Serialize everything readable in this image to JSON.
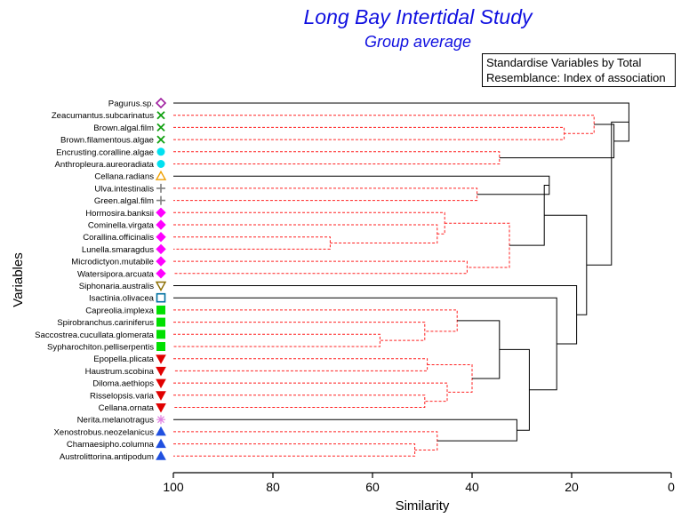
{
  "title": "Long Bay Intertidal Study",
  "subtitle": "Group average",
  "legend_lines": [
    "Standardise Variables by Total",
    "Resemblance: Index of association"
  ],
  "chart_data": {
    "type": "dendrogram",
    "title": "Long Bay Intertidal Study",
    "subtitle": "Group average",
    "xlabel": "Similarity",
    "ylabel": "Variables",
    "xlim": [
      100,
      0
    ],
    "xticks": [
      100,
      80,
      60,
      40,
      20,
      0
    ],
    "colors": {
      "solid_link": "#000000",
      "dashed_link": "#ff2020",
      "purple": "#a020a0",
      "green_x": "#10a010",
      "cyan": "#00e0f0",
      "orange": "#f0a000",
      "gray": "#808080",
      "magenta": "#ff00ff",
      "olive": "#8b6d00",
      "teal": "#0070a0",
      "green_sq": "#00e000",
      "red": "#e00000",
      "pink_star": "#e080e0",
      "blue": "#2050e0"
    },
    "leaves": [
      {
        "label": "Pagurus.sp.",
        "marker": "diamond-open",
        "color": "purple"
      },
      {
        "label": "Zeacumantus.subcarinatus",
        "marker": "x",
        "color": "green_x"
      },
      {
        "label": "Brown.algal.film",
        "marker": "x",
        "color": "green_x"
      },
      {
        "label": "Brown.filamentous.algae",
        "marker": "x",
        "color": "green_x"
      },
      {
        "label": "Encrusting.coralline.algae",
        "marker": "circle",
        "color": "cyan"
      },
      {
        "label": "Anthropleura.aureoradiata",
        "marker": "circle",
        "color": "cyan"
      },
      {
        "label": "Cellana.radians",
        "marker": "triangle-up-open",
        "color": "orange"
      },
      {
        "label": "Ulva.intestinalis",
        "marker": "plus",
        "color": "gray"
      },
      {
        "label": "Green.algal.film",
        "marker": "plus",
        "color": "gray"
      },
      {
        "label": "Hormosira.banksii",
        "marker": "diamond",
        "color": "magenta"
      },
      {
        "label": "Cominella.virgata",
        "marker": "diamond",
        "color": "magenta"
      },
      {
        "label": "Corallina.officinalis",
        "marker": "diamond",
        "color": "magenta"
      },
      {
        "label": "Lunella.smaragdus",
        "marker": "diamond",
        "color": "magenta"
      },
      {
        "label": "Microdictyon.mutabile",
        "marker": "diamond",
        "color": "magenta"
      },
      {
        "label": "Watersipora.arcuata",
        "marker": "diamond",
        "color": "magenta"
      },
      {
        "label": "Siphonaria.australis",
        "marker": "triangle-down-open",
        "color": "olive"
      },
      {
        "label": "Isactinia.olivacea",
        "marker": "square-open",
        "color": "teal"
      },
      {
        "label": "Capreolia.implexa",
        "marker": "square",
        "color": "green_sq"
      },
      {
        "label": "Spirobranchus.cariniferus",
        "marker": "square",
        "color": "green_sq"
      },
      {
        "label": "Saccostrea.cucullata.glomerata",
        "marker": "square",
        "color": "green_sq"
      },
      {
        "label": "Sypharochiton.pelliserpentis",
        "marker": "square",
        "color": "green_sq"
      },
      {
        "label": "Epopella.plicata",
        "marker": "triangle-down",
        "color": "red"
      },
      {
        "label": "Haustrum.scobina",
        "marker": "triangle-down",
        "color": "red"
      },
      {
        "label": "Diloma.aethiops",
        "marker": "triangle-down",
        "color": "red"
      },
      {
        "label": "Risselopsis.varia",
        "marker": "triangle-down",
        "color": "red"
      },
      {
        "label": "Cellana.ornata",
        "marker": "triangle-down",
        "color": "red"
      },
      {
        "label": "Nerita.melanotragus",
        "marker": "asterisk",
        "color": "pink_star"
      },
      {
        "label": "Xenostrobus.neozelanicus",
        "marker": "triangle-up",
        "color": "blue"
      },
      {
        "label": "Chamaesipho.columna",
        "marker": "triangle-up",
        "color": "blue"
      },
      {
        "label": "Austrolittorina.antipodum",
        "marker": "triangle-up",
        "color": "blue"
      }
    ],
    "merges": [
      {
        "id": "N1",
        "children": [
          2,
          3
        ],
        "similarity": 21.5,
        "dashed": true
      },
      {
        "id": "N2",
        "children": [
          1,
          "N1"
        ],
        "similarity": 15.5,
        "dashed": true
      },
      {
        "id": "N3",
        "children": [
          4,
          5
        ],
        "similarity": 34.5,
        "dashed": true
      },
      {
        "id": "N4",
        "children": [
          "N2",
          "N3"
        ],
        "similarity": 11.5,
        "dashed": false
      },
      {
        "id": "N5",
        "children": [
          0,
          "N4"
        ],
        "similarity": 8.5,
        "dashed": false
      },
      {
        "id": "N6",
        "children": [
          7,
          8
        ],
        "similarity": 39.0,
        "dashed": true
      },
      {
        "id": "N7",
        "children": [
          6,
          "N6"
        ],
        "similarity": 24.5,
        "dashed": false
      },
      {
        "id": "N8",
        "children": [
          11,
          12
        ],
        "similarity": 68.5,
        "dashed": true
      },
      {
        "id": "N9",
        "children": [
          10,
          "N8"
        ],
        "similarity": 47.0,
        "dashed": true
      },
      {
        "id": "N10",
        "children": [
          9,
          "N9"
        ],
        "similarity": 45.5,
        "dashed": true
      },
      {
        "id": "N11",
        "children": [
          13,
          14
        ],
        "similarity": 41.0,
        "dashed": true
      },
      {
        "id": "N12",
        "children": [
          "N10",
          "N11"
        ],
        "similarity": 32.5,
        "dashed": true
      },
      {
        "id": "N13",
        "children": [
          "N7",
          "N12"
        ],
        "similarity": 25.5,
        "dashed": false
      },
      {
        "id": "N14",
        "children": [
          19,
          20
        ],
        "similarity": 58.5,
        "dashed": true
      },
      {
        "id": "N15",
        "children": [
          18,
          "N14"
        ],
        "similarity": 49.5,
        "dashed": true
      },
      {
        "id": "N16",
        "children": [
          17,
          "N15"
        ],
        "similarity": 43.0,
        "dashed": true
      },
      {
        "id": "N17",
        "children": [
          24,
          25
        ],
        "similarity": 49.5,
        "dashed": true
      },
      {
        "id": "N18",
        "children": [
          23,
          "N17"
        ],
        "similarity": 45.0,
        "dashed": true
      },
      {
        "id": "N19",
        "children": [
          21,
          22
        ],
        "similarity": 49.0,
        "dashed": true
      },
      {
        "id": "N20",
        "children": [
          "N19",
          "N18"
        ],
        "similarity": 40.0,
        "dashed": true
      },
      {
        "id": "N21",
        "children": [
          "N16",
          "N20"
        ],
        "similarity": 34.5,
        "dashed": false
      },
      {
        "id": "N22",
        "children": [
          28,
          29
        ],
        "similarity": 51.5,
        "dashed": true
      },
      {
        "id": "N23",
        "children": [
          27,
          "N22"
        ],
        "similarity": 47.0,
        "dashed": true
      },
      {
        "id": "N24",
        "children": [
          26,
          "N23"
        ],
        "similarity": 31.0,
        "dashed": false
      },
      {
        "id": "N25",
        "children": [
          "N21",
          "N24"
        ],
        "similarity": 28.5,
        "dashed": false
      },
      {
        "id": "N26",
        "children": [
          16,
          "N25"
        ],
        "similarity": 23.0,
        "dashed": false
      },
      {
        "id": "N27",
        "children": [
          15,
          "N26"
        ],
        "similarity": 19.0,
        "dashed": false
      },
      {
        "id": "N28",
        "children": [
          "N13",
          "N27"
        ],
        "similarity": 17.0,
        "dashed": false
      },
      {
        "id": "N29",
        "children": [
          "N5",
          "N28"
        ],
        "similarity": 12.0,
        "dashed": false
      }
    ]
  }
}
